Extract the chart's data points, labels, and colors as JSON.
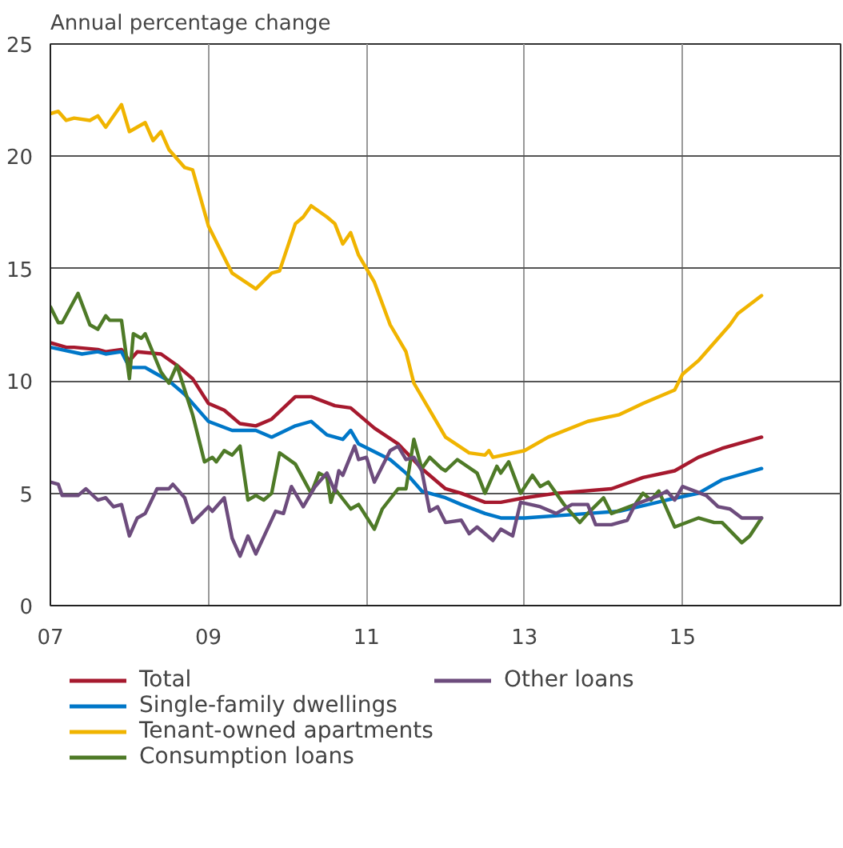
{
  "chart_data": {
    "type": "line",
    "ylabel": "Annual percentage change",
    "xlim": [
      2007,
      2017
    ],
    "ylim": [
      0,
      25
    ],
    "xticks": [
      {
        "value": 2007,
        "label": "07"
      },
      {
        "value": 2009,
        "label": "09"
      },
      {
        "value": 2011,
        "label": "11"
      },
      {
        "value": 2013,
        "label": "13"
      },
      {
        "value": 2015,
        "label": "15"
      }
    ],
    "yticks": [
      0,
      5,
      10,
      15,
      20,
      25
    ],
    "grid": true,
    "legend": "bottom",
    "line_style": "solid",
    "marker": "none",
    "series": [
      {
        "name": "Total",
        "color": "#a6192e",
        "x": [
          2007.0,
          2007.2,
          2007.3,
          2007.6,
          2007.7,
          2007.9,
          2008.0,
          2008.1,
          2008.4,
          2008.6,
          2008.8,
          2009.0,
          2009.2,
          2009.4,
          2009.6,
          2009.8,
          2010.1,
          2010.3,
          2010.6,
          2010.8,
          2011.1,
          2011.4,
          2011.7,
          2012.0,
          2012.2,
          2012.5,
          2012.7,
          2013.0,
          2013.4,
          2014.1,
          2014.5,
          2014.9,
          2015.2,
          2015.5,
          2016.0
        ],
        "values": [
          11.7,
          11.5,
          11.5,
          11.4,
          11.3,
          11.4,
          10.9,
          11.3,
          11.2,
          10.7,
          10.1,
          9.0,
          8.7,
          8.1,
          8.0,
          8.3,
          9.3,
          9.3,
          8.9,
          8.8,
          7.9,
          7.2,
          6.1,
          5.2,
          5.0,
          4.6,
          4.6,
          4.8,
          5.0,
          5.2,
          5.7,
          6.0,
          6.6,
          7.0,
          7.5
        ]
      },
      {
        "name": "Single-family dwellings",
        "color": "#0077c8",
        "x": [
          2007.0,
          2007.4,
          2007.6,
          2007.7,
          2007.9,
          2008.0,
          2008.2,
          2008.3,
          2008.5,
          2008.7,
          2009.0,
          2009.3,
          2009.6,
          2009.8,
          2010.1,
          2010.3,
          2010.5,
          2010.7,
          2010.8,
          2010.9,
          2011.3,
          2011.5,
          2011.7,
          2012.0,
          2012.2,
          2012.5,
          2012.7,
          2013.0,
          2013.8,
          2014.2,
          2014.8,
          2015.2,
          2015.5,
          2016.0
        ],
        "values": [
          11.5,
          11.2,
          11.3,
          11.2,
          11.3,
          10.6,
          10.6,
          10.4,
          10.0,
          9.4,
          8.2,
          7.8,
          7.8,
          7.5,
          8.0,
          8.2,
          7.6,
          7.4,
          7.8,
          7.2,
          6.5,
          5.9,
          5.1,
          4.8,
          4.5,
          4.1,
          3.9,
          3.9,
          4.1,
          4.2,
          4.7,
          5.0,
          5.6,
          6.1
        ]
      },
      {
        "name": "Tenant-owned apartments",
        "color": "#f0b400",
        "x": [
          2007.0,
          2007.1,
          2007.2,
          2007.3,
          2007.5,
          2007.6,
          2007.7,
          2007.9,
          2008.0,
          2008.2,
          2008.3,
          2008.4,
          2008.5,
          2008.7,
          2008.8,
          2009.0,
          2009.3,
          2009.6,
          2009.8,
          2009.9,
          2010.1,
          2010.2,
          2010.3,
          2010.5,
          2010.6,
          2010.7,
          2010.8,
          2010.9,
          2011.1,
          2011.3,
          2011.5,
          2011.6,
          2012.0,
          2012.3,
          2012.5,
          2012.55,
          2012.6,
          2013.0,
          2013.3,
          2013.8,
          2014.2,
          2014.5,
          2014.9,
          2015.0,
          2015.2,
          2015.6,
          2015.7,
          2016.0
        ],
        "values": [
          21.9,
          22.0,
          21.6,
          21.7,
          21.6,
          21.8,
          21.3,
          22.3,
          21.1,
          21.5,
          20.7,
          21.1,
          20.3,
          19.5,
          19.4,
          16.9,
          14.8,
          14.1,
          14.8,
          14.9,
          17.0,
          17.3,
          17.8,
          17.3,
          17.0,
          16.1,
          16.6,
          15.6,
          14.4,
          12.5,
          11.3,
          9.9,
          7.5,
          6.8,
          6.7,
          6.9,
          6.6,
          6.9,
          7.5,
          8.2,
          8.5,
          9.0,
          9.6,
          10.3,
          10.9,
          12.5,
          13.0,
          13.8
        ]
      },
      {
        "name": "Consumption loans",
        "color": "#4e7a27",
        "x": [
          2007.0,
          2007.1,
          2007.15,
          2007.35,
          2007.5,
          2007.6,
          2007.7,
          2007.75,
          2007.9,
          2008.0,
          2008.05,
          2008.15,
          2008.2,
          2008.4,
          2008.5,
          2008.6,
          2008.8,
          2008.95,
          2009.05,
          2009.1,
          2009.2,
          2009.3,
          2009.4,
          2009.5,
          2009.6,
          2009.7,
          2009.8,
          2009.9,
          2010.1,
          2010.3,
          2010.4,
          2010.5,
          2010.55,
          2010.6,
          2010.8,
          2010.9,
          2011.1,
          2011.2,
          2011.4,
          2011.5,
          2011.6,
          2011.7,
          2011.8,
          2011.95,
          2012.0,
          2012.15,
          2012.4,
          2012.5,
          2012.65,
          2012.7,
          2012.8,
          2012.95,
          2013.1,
          2013.2,
          2013.3,
          2013.5,
          2013.7,
          2013.8,
          2014.0,
          2014.1,
          2014.4,
          2014.5,
          2014.6,
          2014.7,
          2014.9,
          2015.2,
          2015.4,
          2015.5,
          2015.75,
          2015.85,
          2016.0
        ],
        "values": [
          13.3,
          12.6,
          12.6,
          13.9,
          12.5,
          12.3,
          12.9,
          12.7,
          12.7,
          10.1,
          12.1,
          11.9,
          12.1,
          10.4,
          9.9,
          10.7,
          8.5,
          6.4,
          6.6,
          6.4,
          6.9,
          6.7,
          7.1,
          4.7,
          4.9,
          4.7,
          5.0,
          6.8,
          6.3,
          5.0,
          5.9,
          5.7,
          4.6,
          5.2,
          4.3,
          4.5,
          3.4,
          4.3,
          5.2,
          5.2,
          7.4,
          6.1,
          6.6,
          6.1,
          6.0,
          6.5,
          5.9,
          5.0,
          6.2,
          5.9,
          6.4,
          5.0,
          5.8,
          5.3,
          5.5,
          4.5,
          3.7,
          4.1,
          4.8,
          4.1,
          4.5,
          5.0,
          4.7,
          5.1,
          3.5,
          3.9,
          3.7,
          3.7,
          2.8,
          3.1,
          3.9
        ]
      },
      {
        "name": "Other loans",
        "color": "#6d4c7d",
        "x": [
          2007.0,
          2007.1,
          2007.15,
          2007.35,
          2007.45,
          2007.6,
          2007.7,
          2007.8,
          2007.9,
          2008.0,
          2008.1,
          2008.2,
          2008.35,
          2008.5,
          2008.55,
          2008.7,
          2008.8,
          2009.0,
          2009.05,
          2009.2,
          2009.3,
          2009.4,
          2009.5,
          2009.6,
          2009.85,
          2009.95,
          2010.05,
          2010.2,
          2010.35,
          2010.5,
          2010.6,
          2010.65,
          2010.7,
          2010.85,
          2010.9,
          2011.0,
          2011.1,
          2011.3,
          2011.4,
          2011.5,
          2011.6,
          2011.7,
          2011.8,
          2011.9,
          2012.0,
          2012.2,
          2012.3,
          2012.4,
          2012.6,
          2012.7,
          2012.85,
          2012.95,
          2013.2,
          2013.4,
          2013.6,
          2013.8,
          2013.9,
          2014.1,
          2014.3,
          2014.4,
          2014.7,
          2014.8,
          2014.9,
          2015.0,
          2015.3,
          2015.45,
          2015.6,
          2015.75,
          2016.0
        ],
        "values": [
          5.5,
          5.4,
          4.9,
          4.9,
          5.2,
          4.7,
          4.8,
          4.4,
          4.5,
          3.1,
          3.9,
          4.1,
          5.2,
          5.2,
          5.4,
          4.8,
          3.7,
          4.4,
          4.2,
          4.8,
          3.0,
          2.2,
          3.1,
          2.3,
          4.2,
          4.1,
          5.3,
          4.4,
          5.3,
          5.9,
          5.1,
          6.0,
          5.8,
          7.1,
          6.5,
          6.6,
          5.5,
          6.9,
          7.1,
          6.5,
          6.6,
          6.0,
          4.2,
          4.4,
          3.7,
          3.8,
          3.2,
          3.5,
          2.9,
          3.4,
          3.1,
          4.6,
          4.4,
          4.1,
          4.5,
          4.5,
          3.6,
          3.6,
          3.8,
          4.5,
          4.9,
          5.1,
          4.7,
          5.3,
          4.9,
          4.4,
          4.3,
          3.9,
          3.9
        ]
      }
    ]
  }
}
